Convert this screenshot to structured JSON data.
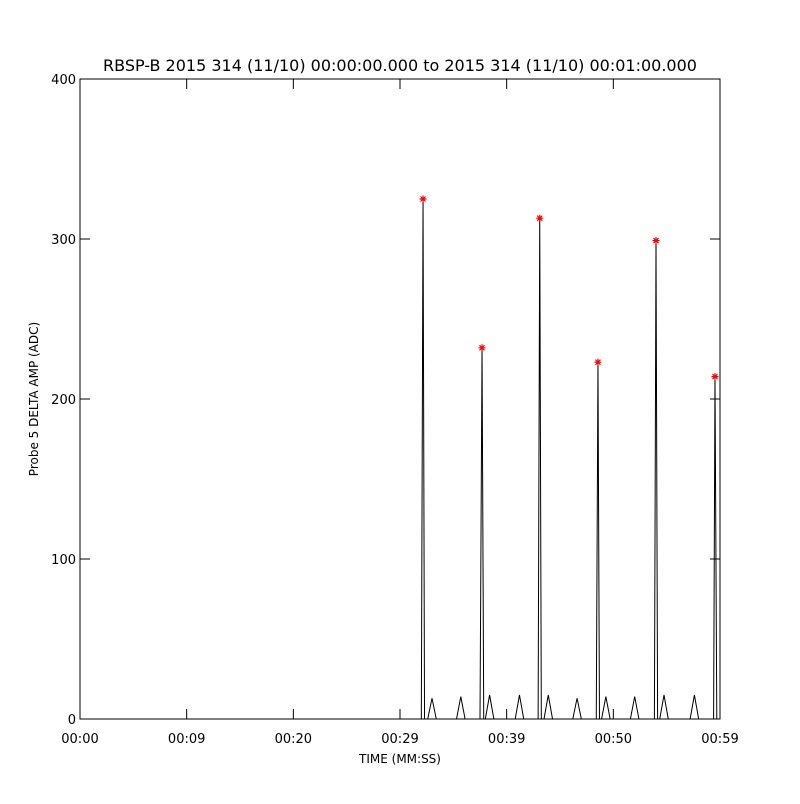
{
  "chart_data": {
    "type": "line",
    "title": "RBSP-B 2015 314 (11/10) 00:00:00.000 to 2015 314 (11/10) 00:01:00.000",
    "x_label": "TIME (MM:SS)",
    "y_label": "Probe 5 DELTA AMP (ADC)",
    "xlim": [
      0,
      60
    ],
    "ylim": [
      0,
      400
    ],
    "xticks": [
      {
        "value": 0,
        "label": "00:00"
      },
      {
        "value": 10,
        "label": "00:09"
      },
      {
        "value": 20,
        "label": "00:20"
      },
      {
        "value": 30,
        "label": "00:29"
      },
      {
        "value": 40,
        "label": "00:39"
      },
      {
        "value": 50,
        "label": "00:50"
      },
      {
        "value": 60,
        "label": "00:59"
      }
    ],
    "yticks": [
      0,
      100,
      200,
      300,
      400
    ],
    "series": [
      {
        "color": "#000000",
        "x": [
          0,
          32.0,
          32.16,
          32.3,
          32.6,
          33.0,
          33.4,
          35.3,
          35.7,
          36.1,
          37.5,
          37.69,
          37.85,
          38.0,
          38.4,
          38.8,
          40.8,
          41.2,
          41.6,
          42.95,
          43.1,
          43.25,
          43.5,
          43.9,
          44.3,
          46.2,
          46.6,
          47.0,
          48.4,
          48.56,
          48.7,
          48.9,
          49.3,
          49.7,
          51.6,
          52.0,
          52.4,
          53.85,
          54.0,
          54.15,
          54.35,
          54.75,
          55.15,
          57.2,
          57.6,
          58.0,
          59.4,
          59.53,
          59.7,
          60
        ],
        "values": [
          0,
          0,
          325,
          0,
          0,
          13,
          0,
          0,
          14,
          0,
          0,
          232,
          0,
          0,
          15,
          0,
          0,
          15,
          0,
          0,
          313,
          0,
          0,
          15,
          0,
          0,
          13,
          0,
          0,
          223,
          0,
          0,
          14,
          0,
          0,
          14,
          0,
          0,
          299,
          0,
          0,
          15,
          0,
          0,
          15,
          0,
          0,
          214,
          0,
          0
        ]
      },
      {
        "color": "#ff0000",
        "marker": "star",
        "x": [
          32.16,
          37.69,
          43.1,
          48.56,
          54.0,
          59.53
        ],
        "values": [
          325,
          232,
          313,
          223,
          299,
          214
        ]
      }
    ]
  }
}
